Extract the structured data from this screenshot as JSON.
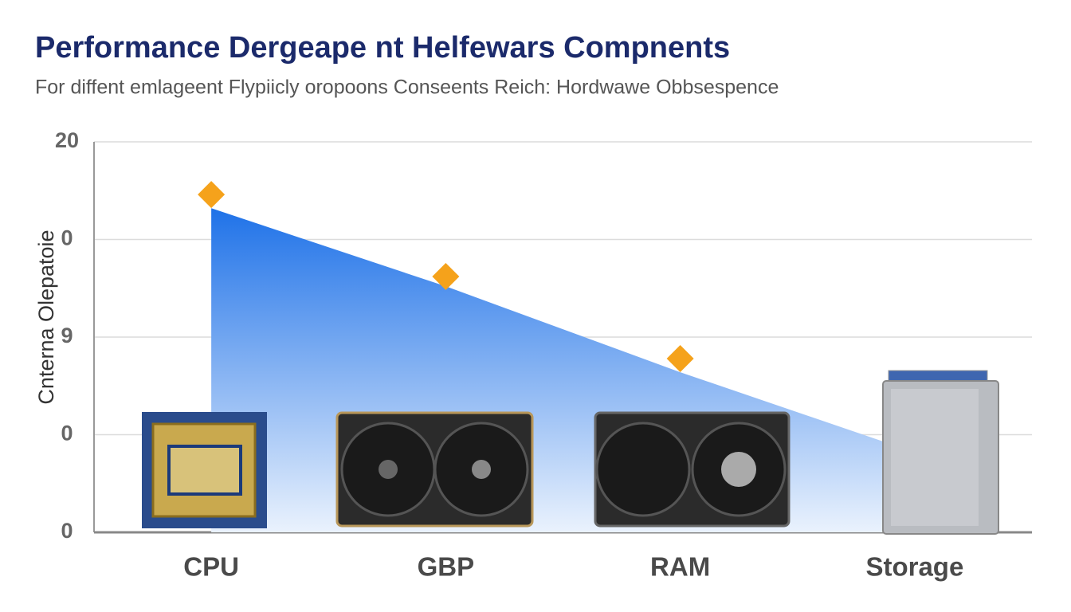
{
  "chart_data": {
    "type": "area",
    "title": "Performance Dergeape nt Helfewars Compnents",
    "subtitle": "For  diffent emlageent Flypiicly oropoons Conseents Reich: Hordwawe  Obbsespence",
    "y_label": "Cnterna  Olepatoie",
    "categories": [
      "CPU",
      "GBP",
      "RAM",
      "Storage"
    ],
    "series": [
      {
        "type": "area",
        "color": "#2a7be4",
        "values": [
          16.6,
          12.6,
          8.2,
          4.1
        ]
      },
      {
        "type": "scatter",
        "marker": "diamond",
        "color": "#f5a21b",
        "values": [
          17.3,
          13.1,
          8.9,
          null
        ]
      }
    ],
    "ylim": [
      0,
      20
    ],
    "yticks": [
      20,
      {
        "value": 15,
        "label": "0"
      },
      {
        "value": 10,
        "label": "9"
      },
      {
        "value": 5,
        "label": "0"
      },
      0
    ],
    "grid": true
  }
}
